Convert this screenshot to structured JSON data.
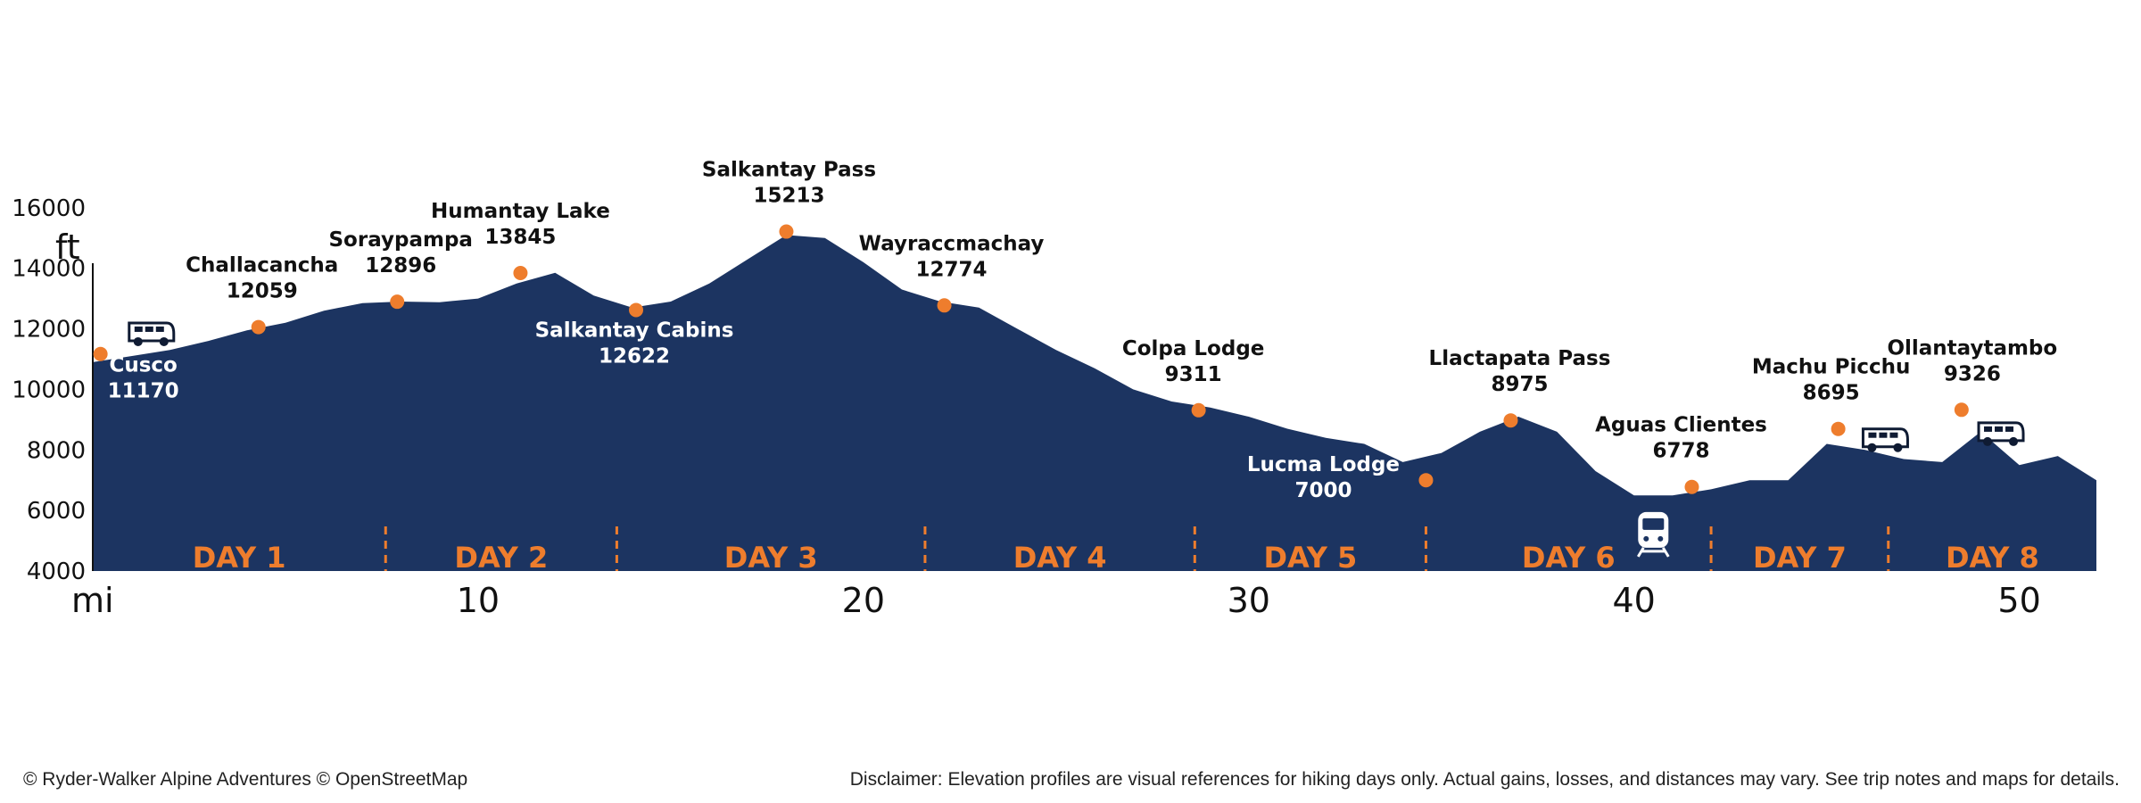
{
  "chart_data": {
    "type": "area",
    "y_unit": "ft",
    "x_unit": "mi",
    "xlim": [
      0,
      52
    ],
    "ylim": [
      4000,
      18000
    ],
    "y_ticks": [
      4000,
      6000,
      8000,
      10000,
      12000,
      14000,
      16000
    ],
    "x_ticks": [
      10,
      20,
      30,
      40,
      50
    ],
    "grid": false,
    "colors": {
      "area": "#1c3461",
      "marker": "#ee7d2d",
      "day_label": "#ee7d2d",
      "divider": "#ee7d2d"
    },
    "profile": {
      "x": [
        0,
        1,
        2,
        3,
        4,
        5,
        6,
        7,
        8,
        9,
        10,
        11,
        12,
        13,
        14,
        15,
        16,
        17,
        18,
        19,
        20,
        21,
        22,
        23,
        24,
        25,
        26,
        27,
        28,
        29,
        30,
        31,
        32,
        33,
        34,
        35,
        36,
        37,
        38,
        39,
        40,
        41,
        42,
        43,
        44,
        45,
        46,
        47,
        48,
        49,
        50,
        51,
        52
      ],
      "elevation": [
        10900,
        11100,
        11300,
        11600,
        11950,
        12200,
        12600,
        12850,
        12900,
        12880,
        13000,
        13500,
        13850,
        13100,
        12700,
        12900,
        13500,
        14300,
        15100,
        15000,
        14200,
        13300,
        12900,
        12700,
        12000,
        11300,
        10700,
        10000,
        9600,
        9400,
        9100,
        8700,
        8400,
        8200,
        7600,
        7900,
        8600,
        9100,
        8600,
        7300,
        6500,
        6500,
        6700,
        7000,
        7000,
        8200,
        8000,
        7700,
        7600,
        8600,
        7500,
        7800,
        7000
      ]
    },
    "waypoints": [
      {
        "name": "Cusco",
        "elevation": "11170",
        "x": 0.2,
        "y": 11170
      },
      {
        "name": "Challacancha",
        "elevation": "12059",
        "x": 4.3,
        "y": 12059
      },
      {
        "name": "Soraypampa",
        "elevation": "12896",
        "x": 7.9,
        "y": 12896
      },
      {
        "name": "Humantay Lake",
        "elevation": "13845",
        "x": 11.1,
        "y": 13845
      },
      {
        "name": "Salkantay Cabins",
        "elevation": "12622",
        "x": 14.1,
        "y": 12622
      },
      {
        "name": "Salkantay Pass",
        "elevation": "15213",
        "x": 18.0,
        "y": 15213
      },
      {
        "name": "Wayraccmachay",
        "elevation": "12774",
        "x": 22.1,
        "y": 12774
      },
      {
        "name": "Colpa Lodge",
        "elevation": "9311",
        "x": 28.7,
        "y": 9311
      },
      {
        "name": "Lucma Lodge",
        "elevation": "7000",
        "x": 34.6,
        "y": 7000
      },
      {
        "name": "Llactapata Pass",
        "elevation": "8975",
        "x": 36.8,
        "y": 8975
      },
      {
        "name": "Aguas Clientes",
        "elevation": "6778",
        "x": 41.5,
        "y": 6778
      },
      {
        "name": "Machu Picchu",
        "elevation": "8695",
        "x": 45.3,
        "y": 8695
      },
      {
        "name": "Ollantaytambo",
        "elevation": "9326",
        "x": 48.5,
        "y": 9326
      }
    ],
    "day_dividers_mi": [
      7.6,
      13.6,
      21.6,
      28.6,
      34.6,
      42.0,
      46.6
    ],
    "day_labels": [
      "DAY 1",
      "DAY 2",
      "DAY 3",
      "DAY 4",
      "DAY 5",
      "DAY 6",
      "DAY 7",
      "DAY 8"
    ],
    "icons": [
      {
        "name": "van-icon",
        "x": 1.5,
        "y": 11900
      },
      {
        "name": "train-icon",
        "x": 40.5,
        "y": 5300
      },
      {
        "name": "van-icon",
        "x": 46.5,
        "y": 8400
      },
      {
        "name": "van-icon",
        "x": 49.5,
        "y": 8600
      }
    ]
  },
  "footer": {
    "left": "© Ryder-Walker Alpine Adventures © OpenStreetMap",
    "right": "Disclaimer: Elevation profiles are visual references for hiking days only. Actual gains, losses, and distances may vary. See trip notes and maps for details."
  }
}
